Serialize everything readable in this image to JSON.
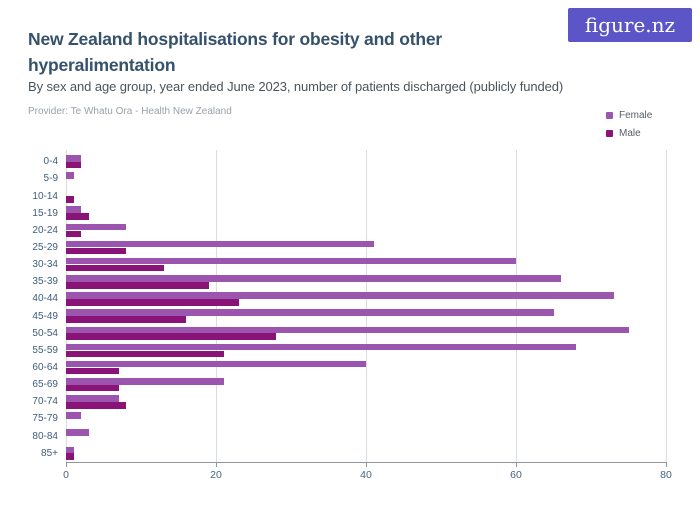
{
  "header": {
    "title_line1": "New Zealand hospitalisations for obesity and other",
    "title_line2": "hyperalimentation",
    "subtitle": "By sex and age group, year ended June 2023, number of patients discharged (publicly funded)",
    "provider": "Provider: Te Whatu Ora - Health New Zealand"
  },
  "logo": {
    "text": "figure.nz",
    "bg_color": "#5b55c8",
    "text_color": "#ffffff"
  },
  "legend": {
    "items": [
      {
        "label": "Female",
        "color": "#9b55ae"
      },
      {
        "label": "Male",
        "color": "#8a1377"
      }
    ]
  },
  "chart_data": {
    "type": "bar",
    "orientation": "horizontal",
    "title": "New Zealand hospitalisations for obesity and other hyperalimentation",
    "subtitle": "By sex and age group, year ended June 2023, number of patients discharged (publicly funded)",
    "xlabel": "",
    "ylabel": "",
    "xlim": [
      0,
      80
    ],
    "xticks": [
      0,
      20,
      40,
      60,
      80
    ],
    "grid": true,
    "legend_position": "top-right",
    "categories": [
      "0-4",
      "5-9",
      "10-14",
      "15-19",
      "20-24",
      "25-29",
      "30-34",
      "35-39",
      "40-44",
      "45-49",
      "50-54",
      "55-59",
      "60-64",
      "65-69",
      "70-74",
      "75-79",
      "80-84",
      "85+"
    ],
    "series": [
      {
        "name": "Female",
        "color": "#9b55ae",
        "values": [
          2,
          1,
          0,
          2,
          8,
          41,
          60,
          66,
          73,
          65,
          75,
          68,
          40,
          21,
          7,
          2,
          3,
          1
        ]
      },
      {
        "name": "Male",
        "color": "#8a1377",
        "values": [
          2,
          0,
          1,
          3,
          2,
          8,
          13,
          19,
          23,
          16,
          28,
          21,
          7,
          7,
          8,
          0,
          0,
          1
        ]
      }
    ]
  },
  "colors": {
    "title": "#35516c",
    "subtitle": "#4a545c",
    "provider": "#99a1a8",
    "axis_line": "#8f969d",
    "gridline": "#dbdde0",
    "tick_label": "#47657f",
    "category_label": "#3f5d7a"
  }
}
